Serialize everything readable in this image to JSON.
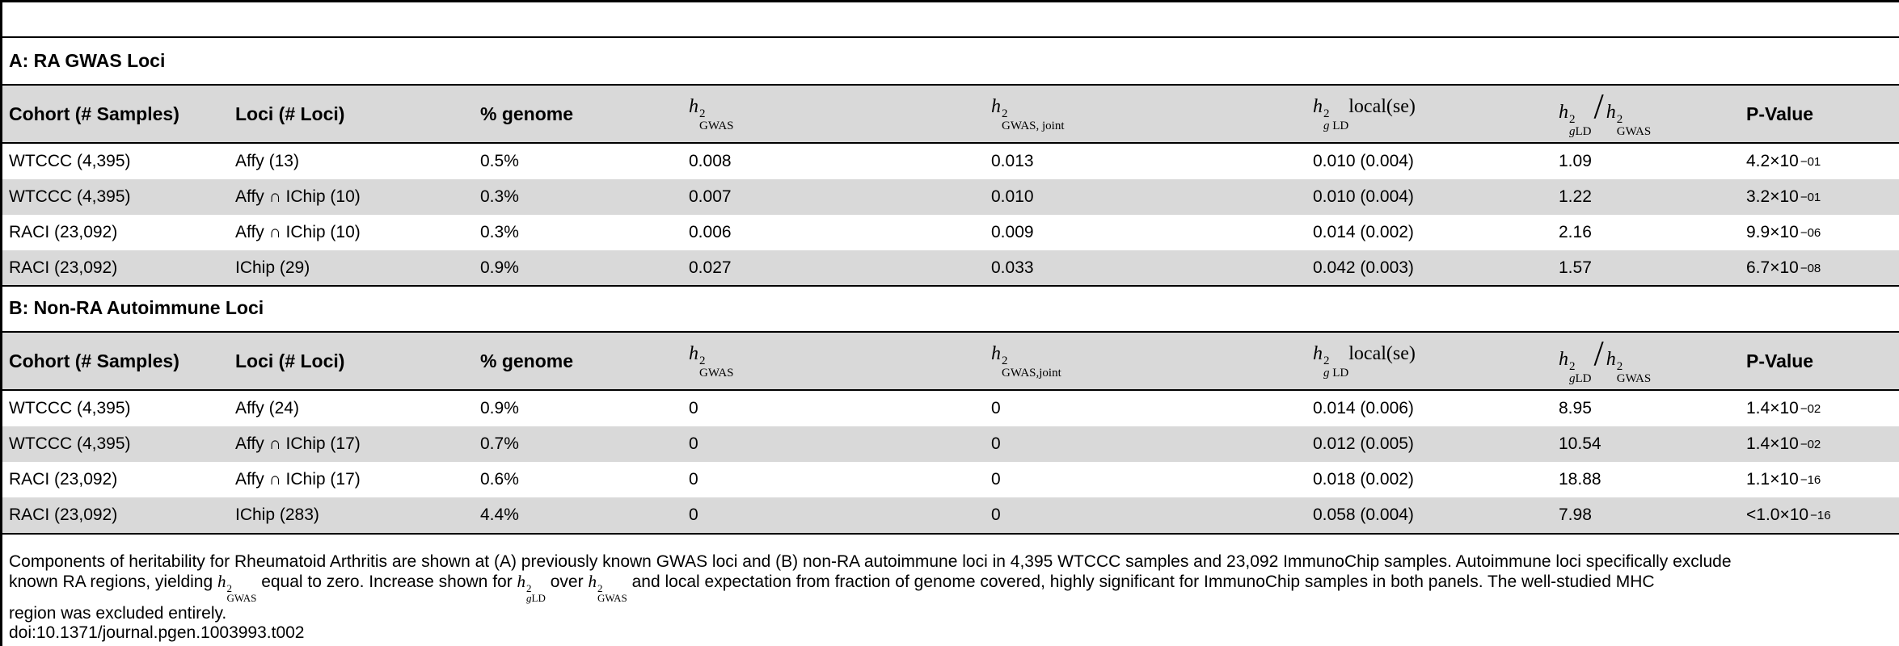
{
  "table": {
    "columns": [
      "Cohort (# Samples)",
      "Loci (# Loci)",
      "% genome",
      "h²GWAS",
      "h²GWAS, joint",
      "h²g LD local(se)",
      "h²g LD / h²GWAS",
      "P-Value"
    ],
    "section_a": {
      "title": "A: RA GWAS Loci",
      "col3_label": "h²GWAS",
      "col4_label": "h²GWAS, joint",
      "rows": [
        {
          "cohort": "WTCCC (4,395)",
          "loci": "Affy (13)",
          "genome": "0.5%",
          "h2gwas": "0.008",
          "h2joint": "0.013",
          "h2local": "0.010 (0.004)",
          "ratio": "1.09",
          "p_mant": "4.2×10",
          "p_exp": "−01"
        },
        {
          "cohort": "WTCCC (4,395)",
          "loci": "Affy ∩ IChip (10)",
          "genome": "0.3%",
          "h2gwas": "0.007",
          "h2joint": "0.010",
          "h2local": "0.010 (0.004)",
          "ratio": "1.22",
          "p_mant": "3.2×10",
          "p_exp": "−01"
        },
        {
          "cohort": "RACI (23,092)",
          "loci": "Affy ∩ IChip (10)",
          "genome": "0.3%",
          "h2gwas": "0.006",
          "h2joint": "0.009",
          "h2local": "0.014 (0.002)",
          "ratio": "2.16",
          "p_mant": "9.9×10",
          "p_exp": "−06"
        },
        {
          "cohort": "RACI (23,092)",
          "loci": "IChip (29)",
          "genome": "0.9%",
          "h2gwas": "0.027",
          "h2joint": "0.033",
          "h2local": "0.042 (0.003)",
          "ratio": "1.57",
          "p_mant": "6.7×10",
          "p_exp": "−08"
        }
      ]
    },
    "section_b": {
      "title": "B: Non-RA Autoimmune Loci",
      "col3_label": "h²GWAS",
      "col4_label": "h²GWAS,joint",
      "rows": [
        {
          "cohort": "WTCCC (4,395)",
          "loci": "Affy (24)",
          "genome": "0.9%",
          "h2gwas": "0",
          "h2joint": "0",
          "h2local": "0.014 (0.006)",
          "ratio": "8.95",
          "p_mant": "1.4×10",
          "p_exp": "−02"
        },
        {
          "cohort": "WTCCC (4,395)",
          "loci": "Affy ∩ IChip (17)",
          "genome": "0.7%",
          "h2gwas": "0",
          "h2joint": "0",
          "h2local": "0.012 (0.005)",
          "ratio": "10.54",
          "p_mant": "1.4×10",
          "p_exp": "−02"
        },
        {
          "cohort": "RACI (23,092)",
          "loci": "Affy ∩ IChip (17)",
          "genome": "0.6%",
          "h2gwas": "0",
          "h2joint": "0",
          "h2local": "0.018 (0.002)",
          "ratio": "18.88",
          "p_mant": "1.1×10",
          "p_exp": "−16"
        },
        {
          "cohort": "RACI (23,092)",
          "loci": "IChip (283)",
          "genome": "4.4%",
          "h2gwas": "0",
          "h2joint": "0",
          "h2local": "0.058 (0.004)",
          "ratio": "7.98",
          "p_mant": "<1.0×10",
          "p_exp": "−16"
        }
      ]
    }
  },
  "caption": {
    "line1": "Components of heritability for Rheumatoid Arthritis are shown at (A) previously known GWAS loci and (B) non-RA autoimmune loci in 4,395 WTCCC samples and 23,092 ImmunoChip samples. Autoimmune loci specifically exclude",
    "line2_a": "known RA regions, yielding",
    "line2_b": "equal to zero. Increase shown for",
    "line2_c": "over",
    "line2_d": "and local expectation from fraction of genome covered, highly significant for ImmunoChip samples in both panels. The well-studied MHC",
    "line3": "region was excluded entirely.",
    "doi": "doi:10.1371/journal.pgen.1003993.t002"
  }
}
